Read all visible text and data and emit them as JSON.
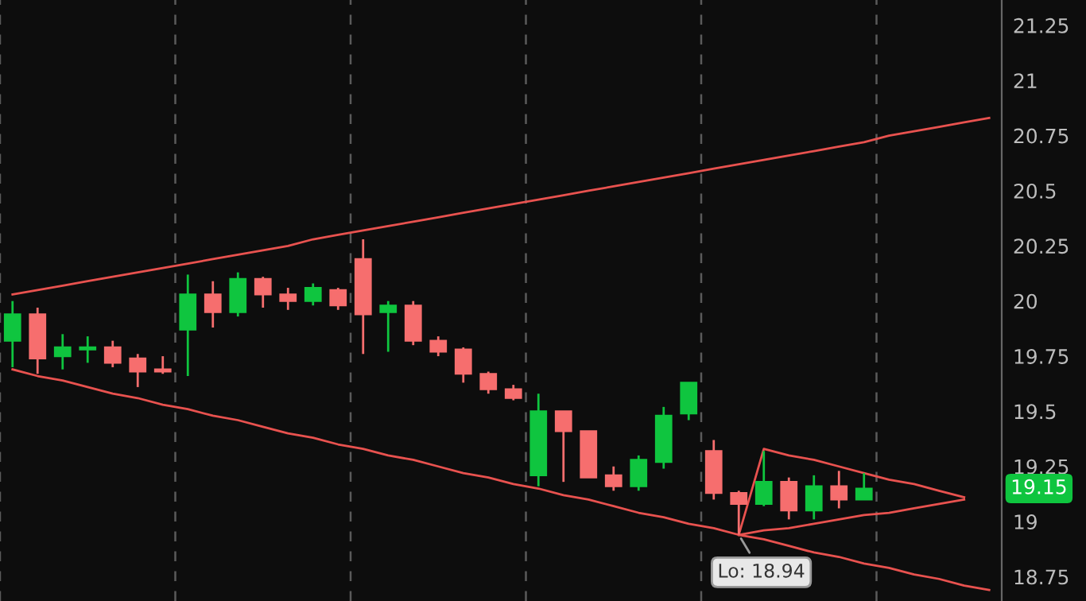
{
  "chart_data": {
    "type": "candlestick",
    "categories": [
      null,
      null,
      null,
      null,
      null,
      null,
      null,
      null,
      null,
      null,
      null,
      null,
      null,
      null,
      null,
      null,
      null,
      null,
      null,
      null,
      null,
      null,
      null,
      null,
      null,
      null,
      null,
      null,
      null,
      null,
      null,
      null,
      null,
      null,
      null,
      null,
      null,
      null,
      null,
      null
    ],
    "ohlc": [
      [
        19.82,
        20.0,
        19.7,
        19.94
      ],
      [
        19.94,
        19.97,
        19.67,
        19.74
      ],
      [
        19.75,
        19.85,
        19.69,
        19.79
      ],
      [
        19.78,
        19.84,
        19.72,
        19.79
      ],
      [
        19.79,
        19.82,
        19.7,
        19.72
      ],
      [
        19.74,
        19.76,
        19.61,
        19.68
      ],
      [
        19.69,
        19.75,
        19.67,
        19.68
      ],
      [
        19.87,
        20.12,
        19.66,
        20.03
      ],
      [
        20.03,
        20.09,
        19.88,
        19.95
      ],
      [
        19.95,
        20.13,
        19.93,
        20.1
      ],
      [
        20.1,
        20.11,
        19.97,
        20.03
      ],
      [
        20.03,
        20.06,
        19.96,
        20.0
      ],
      [
        20.0,
        20.08,
        19.98,
        20.06
      ],
      [
        20.05,
        20.06,
        19.96,
        19.98
      ],
      [
        20.19,
        20.28,
        19.76,
        19.94
      ],
      [
        19.95,
        20.0,
        19.77,
        19.98
      ],
      [
        19.98,
        20.0,
        19.8,
        19.82
      ],
      [
        19.82,
        19.84,
        19.75,
        19.77
      ],
      [
        19.78,
        19.79,
        19.63,
        19.67
      ],
      [
        19.67,
        19.68,
        19.58,
        19.6
      ],
      [
        19.6,
        19.62,
        19.55,
        19.56
      ],
      [
        19.21,
        19.58,
        19.16,
        19.5
      ],
      [
        19.5,
        19.5,
        19.18,
        19.41
      ],
      [
        19.41,
        19.41,
        19.2,
        19.2
      ],
      [
        19.21,
        19.25,
        19.14,
        19.16
      ],
      [
        19.16,
        19.3,
        19.14,
        19.28
      ],
      [
        19.27,
        19.52,
        19.24,
        19.48
      ],
      [
        19.49,
        19.63,
        19.46,
        19.63
      ],
      [
        19.32,
        19.37,
        19.1,
        19.13
      ],
      [
        19.13,
        19.14,
        18.94,
        19.08
      ],
      [
        19.08,
        19.32,
        19.07,
        19.18
      ],
      [
        19.18,
        19.2,
        19.01,
        19.05
      ],
      [
        19.05,
        19.21,
        19.01,
        19.16
      ],
      [
        19.16,
        19.23,
        19.06,
        19.1
      ],
      [
        19.1,
        19.22,
        19.1,
        19.15
      ],
      null,
      null,
      null,
      null,
      null
    ],
    "colors": [
      "#0fc53f",
      "#f66e6e",
      "#0fc53f",
      "#0fc53f",
      "#f66e6e",
      "#f66e6e",
      "#f66e6e",
      "#0fc53f",
      "#f66e6e",
      "#0fc53f",
      "#f66e6e",
      "#f66e6e",
      "#0fc53f",
      "#f66e6e",
      "#f66e6e",
      "#0fc53f",
      "#f66e6e",
      "#f66e6e",
      "#f66e6e",
      "#f66e6e",
      "#f66e6e",
      "#0fc53f",
      "#f66e6e",
      "#f66e6e",
      "#f66e6e",
      "#0fc53f",
      "#0fc53f",
      "#0fc53f",
      "#f66e6e",
      "#f66e6e",
      "#0fc53f",
      "#f66e6e",
      "#0fc53f",
      "#f66e6e",
      "#0fc53f",
      null,
      null,
      null,
      null,
      null
    ],
    "series": [
      {
        "type": "line",
        "color": "#e8524f",
        "values": [
          20.03,
          20.05,
          20.07,
          20.09,
          20.11,
          20.13,
          20.15,
          20.17,
          20.19,
          20.21,
          20.23,
          20.25,
          20.28,
          20.3,
          20.32,
          20.34,
          20.36,
          20.38,
          20.4,
          20.42,
          20.44,
          20.46,
          20.48,
          20.5,
          20.52,
          20.54,
          20.56,
          20.58,
          20.6,
          20.62,
          20.64,
          20.66,
          20.68,
          20.7,
          20.72,
          20.75,
          20.77,
          20.79,
          20.81,
          20.83
        ]
      },
      {
        "type": "line",
        "color": "#e8524f",
        "values": [
          19.69,
          19.66,
          19.64,
          19.61,
          19.58,
          19.56,
          19.53,
          19.51,
          19.48,
          19.46,
          19.43,
          19.4,
          19.38,
          19.35,
          19.33,
          19.3,
          19.28,
          19.25,
          19.22,
          19.2,
          19.17,
          19.15,
          19.12,
          19.1,
          19.07,
          19.04,
          19.02,
          18.99,
          18.97,
          18.94,
          18.92,
          18.89,
          18.86,
          18.84,
          18.81,
          18.79,
          18.76,
          18.74,
          18.71,
          18.69
        ]
      },
      {
        "type": "line",
        "color": "#e8524f",
        "values": [
          null,
          null,
          null,
          null,
          null,
          null,
          null,
          null,
          null,
          null,
          null,
          null,
          null,
          null,
          null,
          null,
          null,
          null,
          null,
          null,
          null,
          null,
          null,
          null,
          null,
          null,
          null,
          null,
          null,
          18.94,
          19.33,
          19.3,
          19.28,
          19.25,
          19.22,
          19.19,
          19.17,
          19.14,
          19.11,
          null
        ]
      },
      {
        "type": "line",
        "color": "#e8524f",
        "values": [
          null,
          null,
          null,
          null,
          null,
          null,
          null,
          null,
          null,
          null,
          null,
          null,
          null,
          null,
          null,
          null,
          null,
          null,
          null,
          null,
          null,
          null,
          null,
          null,
          null,
          null,
          null,
          null,
          null,
          18.94,
          18.96,
          18.97,
          18.99,
          19.01,
          19.03,
          19.04,
          19.06,
          19.08,
          19.1,
          null
        ]
      }
    ],
    "ylim": [
      18.64,
      21.365
    ],
    "yticks": [
      18.75,
      19,
      19.25,
      19.5,
      19.75,
      20,
      20.25,
      20.5,
      20.75,
      21,
      21.25
    ],
    "tick_labels": "y",
    "annotations": [
      {
        "text": "Lo: 18.94",
        "y": 18.94
      },
      "19.15"
    ],
    "grid": false,
    "legend": false
  }
}
